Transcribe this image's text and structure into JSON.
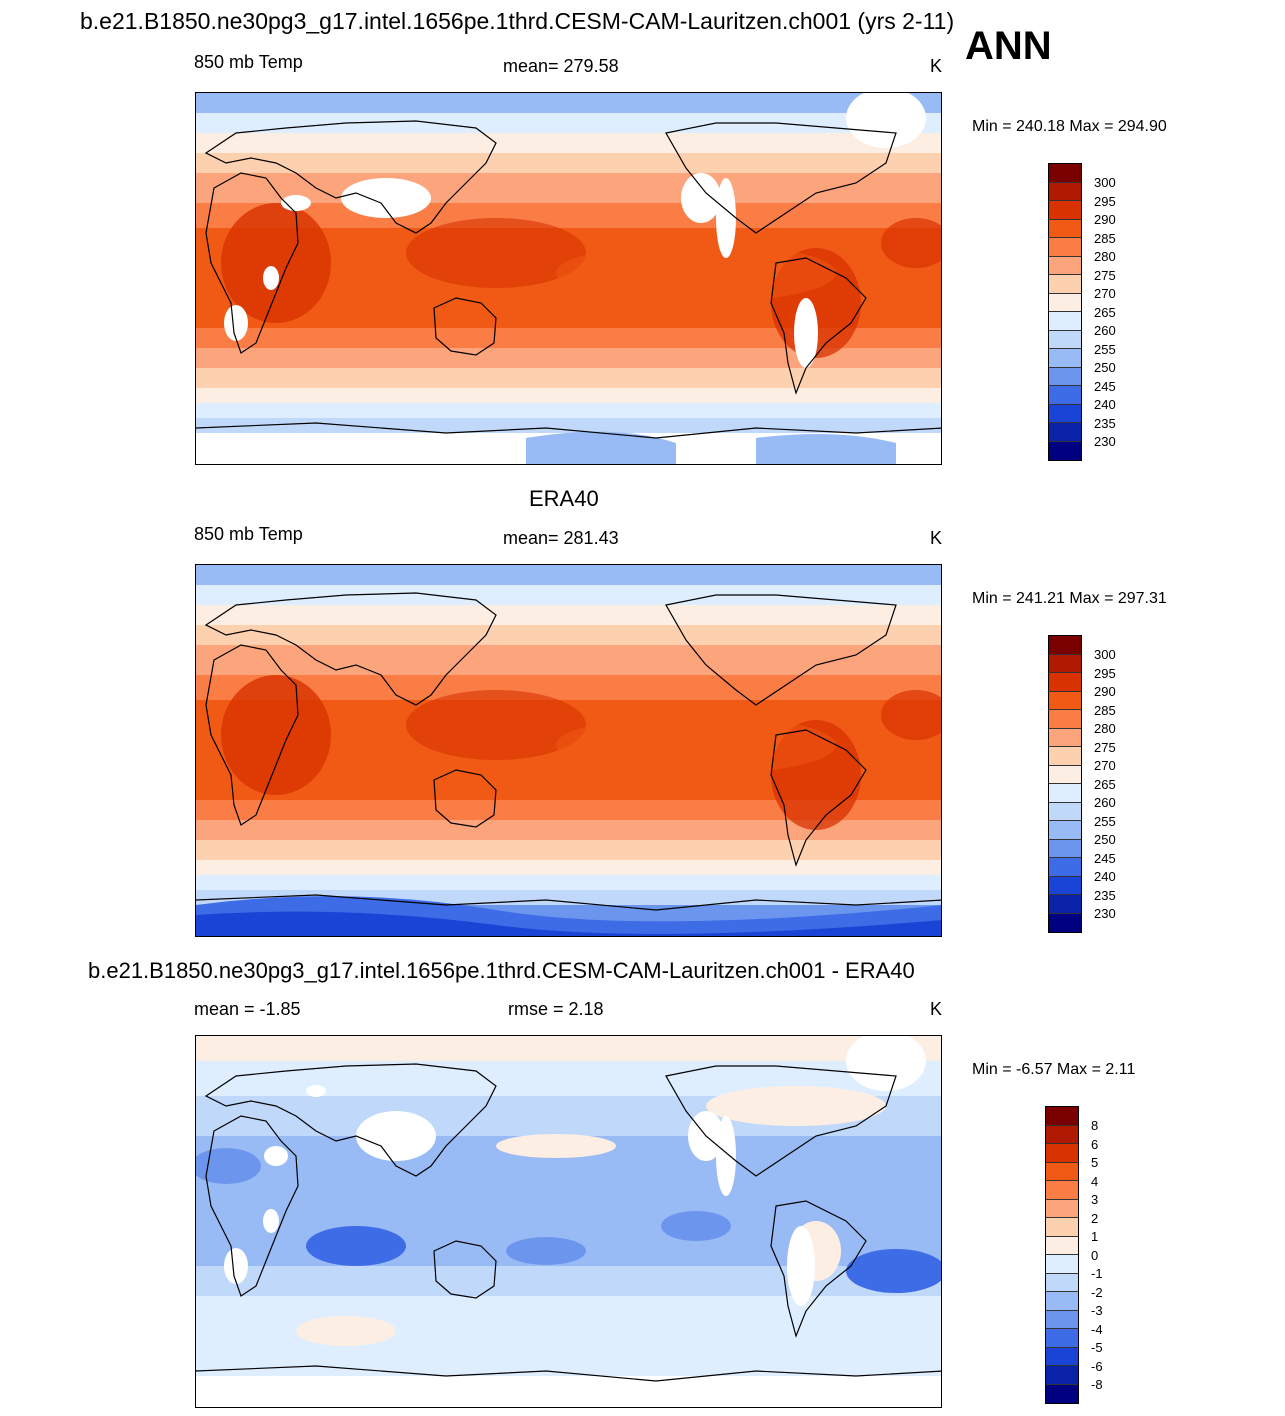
{
  "header": {
    "title": "b.e21.B1850.ne30pg3_g17.intel.1656pe.1thrd.CESM-CAM-Lauritzen.ch001 (yrs 2-11)",
    "season": "ANN"
  },
  "panels": [
    {
      "title": "",
      "left_label": "850 mb Temp",
      "center_label": "mean= 279.58",
      "units": "K",
      "minmax": "Min = 240.18 Max = 294.90",
      "palette": "temp",
      "missing_land": true,
      "levels": [
        "300",
        "295",
        "290",
        "285",
        "280",
        "275",
        "270",
        "265",
        "260",
        "255",
        "250",
        "245",
        "240",
        "235",
        "230"
      ]
    },
    {
      "title": "ERA40",
      "left_label": "850 mb Temp",
      "center_label": "mean= 281.43",
      "units": "K",
      "minmax": "Min = 241.21 Max = 297.31",
      "palette": "temp",
      "missing_land": false,
      "levels": [
        "300",
        "295",
        "290",
        "285",
        "280",
        "275",
        "270",
        "265",
        "260",
        "255",
        "250",
        "245",
        "240",
        "235",
        "230"
      ]
    },
    {
      "title": "b.e21.B1850.ne30pg3_g17.intel.1656pe.1thrd.CESM-CAM-Lauritzen.ch001 - ERA40",
      "left_label": "mean =  -1.85",
      "center_label": "rmse =   2.18",
      "units": "K",
      "minmax": "Min =  -6.57 Max =   2.11",
      "palette": "diff",
      "missing_land": true,
      "levels": [
        "8",
        "6",
        "5",
        "4",
        "3",
        "2",
        "1",
        "0",
        "-1",
        "-2",
        "-3",
        "-4",
        "-5",
        "-6",
        "-8"
      ]
    }
  ],
  "colors": {
    "temp_scale": [
      "#7a0000",
      "#b01800",
      "#d83200",
      "#f05a14",
      "#fa7d46",
      "#fca47c",
      "#fdd0b0",
      "#fdeee4",
      "#dfeeff",
      "#c0d8fa",
      "#99bbf5",
      "#6c96ee",
      "#3e6ce6",
      "#1a44d6",
      "#0a22a8",
      "#000080"
    ],
    "diff_scale": [
      "#7a0000",
      "#b01800",
      "#d83200",
      "#f05a14",
      "#fa7d46",
      "#fca47c",
      "#fdd0b0",
      "#fdeee4",
      "#dfeeff",
      "#c0d8fa",
      "#99bbf5",
      "#6c96ee",
      "#3e6ce6",
      "#1a44d6",
      "#0a22a8",
      "#000080"
    ],
    "diff_main": [
      "#fdeee4",
      "#dfeeff",
      "#c0d8fa",
      "#99bbf5",
      "#6c96ee",
      "#3e6ce6"
    ]
  }
}
